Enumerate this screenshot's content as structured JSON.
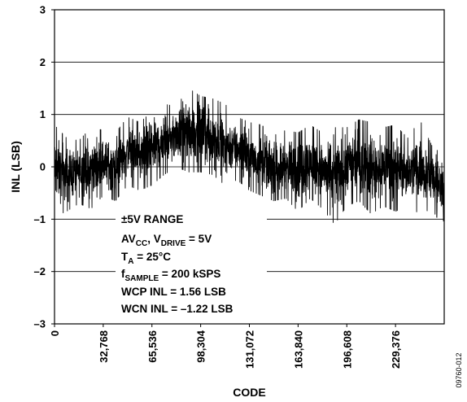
{
  "chart_data": {
    "type": "line",
    "xlabel": "CODE",
    "ylabel": "INL (LSB)",
    "xlim": [
      0,
      262143
    ],
    "ylim": [
      -3,
      3
    ],
    "x_ticks": [
      0,
      32768,
      65536,
      98304,
      131072,
      163840,
      196608,
      229376
    ],
    "x_tick_labels": [
      "0",
      "32,768",
      "65,536",
      "98,304",
      "131,072",
      "163,840",
      "196,608",
      "229,376"
    ],
    "y_ticks": [
      -3,
      -2,
      -1,
      0,
      1,
      2,
      3
    ],
    "y_tick_labels": [
      "–3",
      "–2",
      "–1",
      "0",
      "1",
      "2",
      "3"
    ],
    "grid": "horizontal",
    "series": [
      {
        "color": "#000000",
        "envelope": {
          "x": [
            0,
            8192,
            16384,
            24576,
            32768,
            40960,
            49152,
            57344,
            65536,
            73728,
            81920,
            90112,
            98304,
            106496,
            114688,
            122880,
            131072,
            139264,
            147456,
            155648,
            163840,
            172032,
            180224,
            188416,
            196608,
            204800,
            212992,
            221184,
            229376,
            237568,
            245760,
            253952,
            262143
          ],
          "max": [
            0.8,
            0.55,
            0.5,
            0.75,
            0.7,
            0.65,
            0.95,
            0.85,
            1.05,
            1.2,
            1.15,
            1.5,
            1.35,
            1.3,
            1.2,
            0.95,
            0.85,
            0.8,
            0.6,
            0.7,
            0.65,
            0.8,
            0.65,
            0.75,
            0.75,
            0.9,
            0.85,
            0.75,
            0.8,
            0.55,
            0.9,
            0.4,
            0.2
          ],
          "min": [
            -0.95,
            -0.85,
            -0.7,
            -0.8,
            -0.55,
            -0.65,
            -0.35,
            -0.45,
            -0.35,
            -0.15,
            0.0,
            -0.1,
            -0.1,
            -0.15,
            -0.35,
            -0.25,
            -0.45,
            -0.55,
            -0.65,
            -0.6,
            -0.85,
            -0.6,
            -0.8,
            -1.1,
            -0.75,
            -0.65,
            -0.9,
            -0.75,
            -0.85,
            -0.75,
            -0.9,
            -0.8,
            -1.22
          ]
        }
      }
    ],
    "annotations": [
      {
        "text": "±5V RANGE"
      },
      {
        "text": "AV",
        "sub": "CC",
        "text2": ", V",
        "sub2": "DRIVE",
        "text3": " = 5V"
      },
      {
        "text": "T",
        "sub": "A",
        "text2": " = 25°C"
      },
      {
        "text": "f",
        "sub": "SAMPLE",
        "text2": " = 200 kSPS"
      },
      {
        "text": "WCP INL = 1.56 LSB"
      },
      {
        "text": "WCN INL = –1.22 LSB"
      }
    ],
    "figure_id": "09760-012"
  }
}
